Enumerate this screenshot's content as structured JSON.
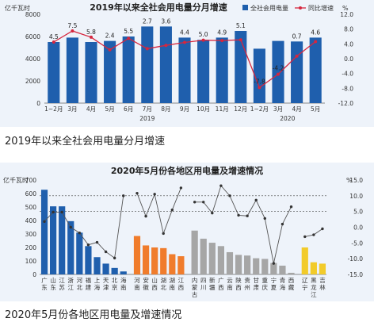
{
  "captions": {
    "chart1": "2019年以来全社会用电量分月增速",
    "chart2": "2020年5月份各地区用电量及增速情况"
  },
  "colors": {
    "bar_blue": "#1f5fad",
    "line_red": "#d6263e",
    "orange": "#f07c2c",
    "gray": "#a6a6a6",
    "yellow": "#f2cb2a",
    "line_gray": "#555555",
    "background": "#eef3fa"
  },
  "chart_data": [
    {
      "type": "bar",
      "title": "2019年以来全社会用电量分月增速",
      "y_left_unit": "亿千瓦时",
      "y_right_unit": "%",
      "ylim_left": [
        0,
        8000
      ],
      "yticks_left": [
        "0",
        "2000",
        "4000",
        "6000",
        "8000"
      ],
      "ylim_right": [
        -12,
        12
      ],
      "yticks_right": [
        "12.0",
        "8.0",
        "4.0",
        "0.0",
        "-4.0",
        "-8.0",
        "-12.0"
      ],
      "categories": [
        "1~2月",
        "3月",
        "4月",
        "5月",
        "6月",
        "7月",
        "8月",
        "9月",
        "10月",
        "11月",
        "12月",
        "1~2月",
        "3月",
        "4月",
        "5月"
      ],
      "year_labels": [
        {
          "label": "2019",
          "start": 0,
          "end": 10
        },
        {
          "label": "2020",
          "start": 11,
          "end": 14
        }
      ],
      "legend": [
        "全社会用电量",
        "同比增速"
      ],
      "series": [
        {
          "name": "全社会用电量",
          "kind": "bar",
          "values": [
            5500,
            5900,
            5500,
            5600,
            6000,
            6900,
            6900,
            5900,
            5700,
            5900,
            6500,
            4900,
            5600,
            5550,
            5900
          ]
        },
        {
          "name": "同比增速",
          "kind": "line",
          "values": [
            4.5,
            7.5,
            5.8,
            2.4,
            5.5,
            2.7,
            3.6,
            4.4,
            5.0,
            4.9,
            5.1,
            -7.8,
            -4.2,
            0.7,
            4.6
          ]
        }
      ],
      "data_labels": [
        "4.5",
        "7.5",
        "5.8",
        "2.4",
        "5.5",
        "2.7",
        "3.6",
        "4.4",
        "5.0",
        "4.9",
        "5.1",
        "-7.8",
        "-4.2",
        "0.7",
        "4.6"
      ],
      "grid": false,
      "legend_position": "top-right"
    },
    {
      "type": "bar",
      "title": "2020年5月份各地区用电量及增速情况",
      "y_left_unit": "亿千瓦时",
      "y_right_unit": "%",
      "ylim_left": [
        0,
        700
      ],
      "yticks_left": [
        "0",
        "100",
        "200",
        "300",
        "400",
        "500",
        "600",
        "700"
      ],
      "ylim_right": [
        -15,
        15
      ],
      "yticks_right": [
        "15.0",
        "10.0",
        "5.0",
        "0.0",
        "-5.0",
        "-10.0",
        "-15.0"
      ],
      "categories": [
        "广东",
        "山东",
        "江苏",
        "浙江",
        "河北",
        "福建",
        "上海",
        "天津",
        "北京",
        "海南",
        "河南",
        "安徽",
        "山西",
        "湖北",
        "湖南",
        "江西",
        "内蒙古",
        "四川",
        "新疆",
        "广西",
        "云南",
        "陕西",
        "贵州",
        "甘肃",
        "重庆",
        "宁夏",
        "青海",
        "西藏",
        "辽宁",
        "黑龙江",
        "吉林"
      ],
      "groups": [
        {
          "color_key": "bar_blue",
          "start": 0,
          "end": 9
        },
        {
          "color_key": "orange",
          "start": 10,
          "end": 15
        },
        {
          "color_key": "gray",
          "start": 16,
          "end": 27
        },
        {
          "color_key": "yellow",
          "start": 28,
          "end": 30
        }
      ],
      "series": [
        {
          "name": "用电量",
          "kind": "bar",
          "values": [
            628,
            505,
            505,
            395,
            310,
            210,
            128,
            80,
            48,
            22,
            285,
            215,
            200,
            195,
            150,
            135,
            325,
            265,
            235,
            210,
            165,
            145,
            140,
            120,
            115,
            85,
            65,
            12,
            200,
            90,
            80
          ]
        },
        {
          "name": "增速",
          "kind": "line",
          "values": [
            1.8,
            4.8,
            4.8,
            0.0,
            -1.8,
            -5.6,
            -4.8,
            -7.8,
            -9.8,
            10.0,
            10.8,
            3.5,
            10.5,
            -2.0,
            5.5,
            12.5,
            8.0,
            8.0,
            4.5,
            13.2,
            10.0,
            3.8,
            3.6,
            8.6,
            2.8,
            -11.5,
            1.0,
            6.5,
            -3.0,
            -2.4,
            -0.5
          ]
        }
      ],
      "reference_lines_right": [
        10.0,
        5.0
      ],
      "grid": false
    }
  ]
}
